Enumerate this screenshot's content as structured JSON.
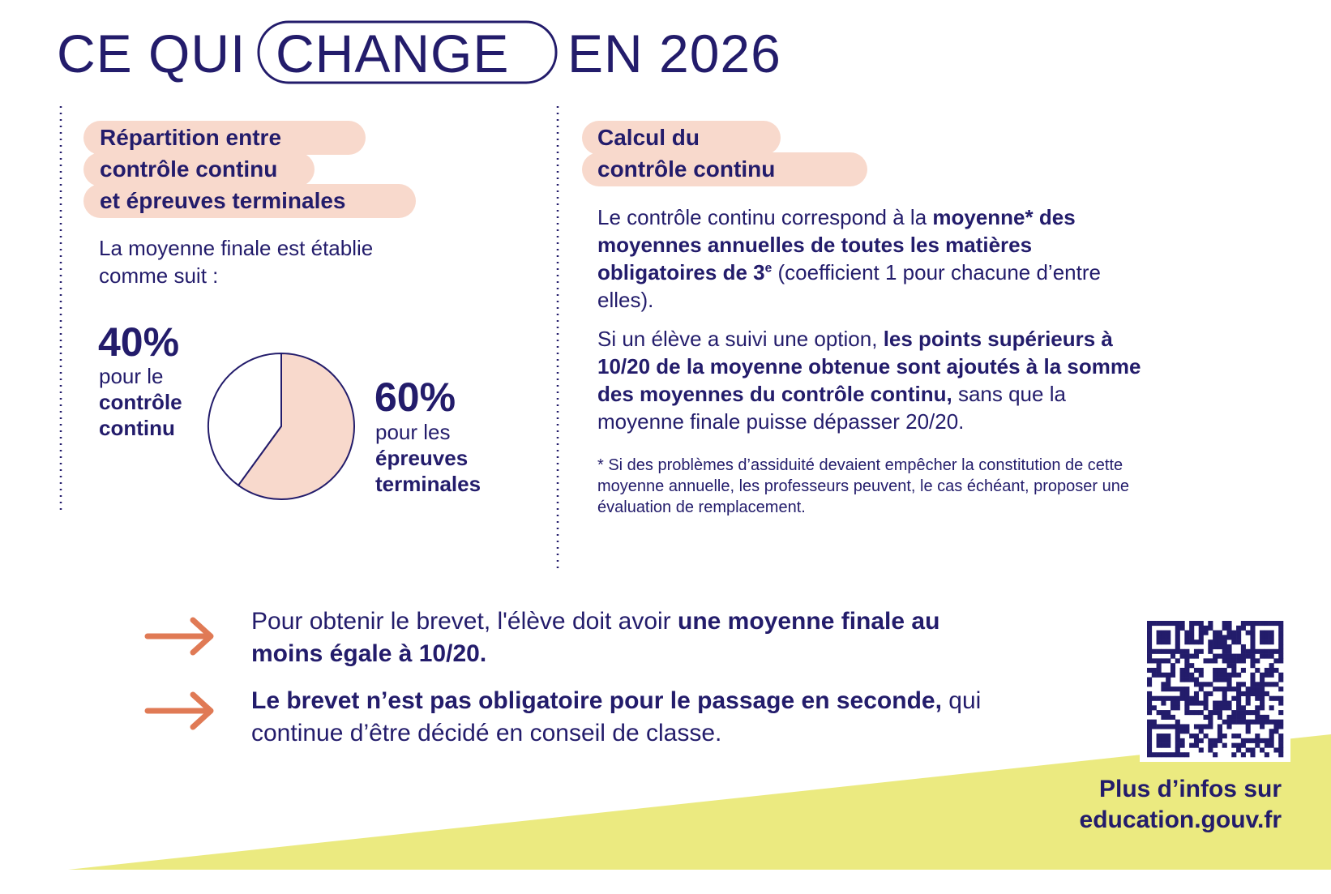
{
  "header": {
    "title_before": "CE QUI",
    "title_highlight": "CHANGE",
    "title_after": "EN 2026"
  },
  "left": {
    "heading": [
      "Répartition entre",
      "contrôle continu",
      "et épreuves terminales"
    ],
    "intro": "La moyenne finale est établie comme suit :"
  },
  "chart_data": {
    "type": "pie",
    "values": [
      40,
      60
    ],
    "value_labels": [
      "40%",
      "60%"
    ],
    "descriptions": [
      {
        "prefix": "pour le",
        "bold": "contrôle continu"
      },
      {
        "prefix": "pour les",
        "bold": "épreuves terminales"
      }
    ],
    "colors": [
      "#ffffff",
      "#f8d9cc"
    ]
  },
  "right": {
    "heading": [
      "Calcul du",
      "contrôle continu"
    ],
    "paragraphs": [
      [
        {
          "text": "Le contrôle continu correspond à la "
        },
        {
          "text": "moyenne* des moyennes annuelles de toutes les matières obligatoires de 3",
          "bold": true
        },
        {
          "text": "e",
          "bold": true,
          "sup": true
        },
        {
          "text": " (coefficient 1 pour chacune d’entre elles)."
        }
      ],
      [
        {
          "text": "Si un élève a suivi une option, "
        },
        {
          "text": "les points supérieurs à 10/20 de la moyenne obtenue sont ajoutés à la somme des moyennes du contrôle continu,",
          "bold": true
        },
        {
          "text": " sans que la moyenne finale puisse dépasser 20/20."
        }
      ]
    ],
    "footnote": "* Si des problèmes d’assiduité devaient empêcher la constitution de cette moyenne annuelle, les professeurs peuvent, le cas échéant, proposer une évaluation de remplacement."
  },
  "bottom": {
    "items": [
      [
        {
          "text": "Pour obtenir le brevet, l'élève doit avoir "
        },
        {
          "text": "une moyenne finale au moins égale à 10/20.",
          "bold": true
        }
      ],
      [
        {
          "text": "Le brevet n’est pas obligatoire pour le passage en seconde,",
          "bold": true
        },
        {
          "text": " qui continue d’être décidé en conseil de classe."
        }
      ]
    ]
  },
  "footer": {
    "line1": "Plus d’infos sur",
    "line2": "education.gouv.fr"
  }
}
